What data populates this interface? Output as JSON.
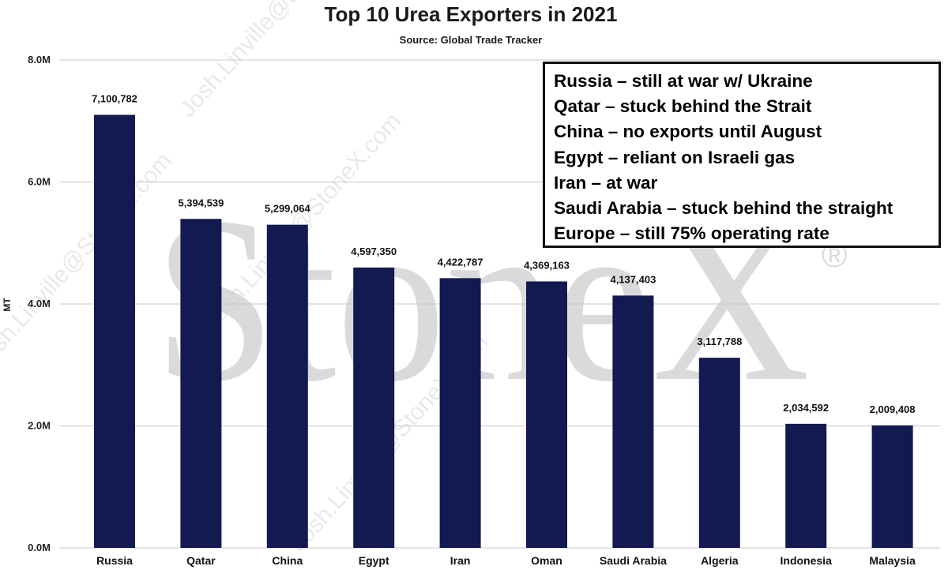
{
  "chart_data": {
    "type": "bar",
    "title": "Top 10 Urea Exporters in 2021",
    "subtitle": "Source: Global Trade Tracker",
    "xlabel": "",
    "ylabel": "MT",
    "ylim": [
      0,
      8000000
    ],
    "yticks": [
      {
        "value": 0,
        "label": "0.0M"
      },
      {
        "value": 2000000,
        "label": "2.0M"
      },
      {
        "value": 4000000,
        "label": "4.0M"
      },
      {
        "value": 6000000,
        "label": "6.0M"
      },
      {
        "value": 8000000,
        "label": "8.0M"
      }
    ],
    "categories": [
      "Russia",
      "Qatar",
      "China",
      "Egypt",
      "Iran",
      "Oman",
      "Saudi Arabia",
      "Algeria",
      "Indonesia",
      "Malaysia"
    ],
    "values": [
      7100782,
      5394539,
      5299064,
      4597350,
      4422787,
      4369163,
      4137403,
      3117788,
      2034592,
      2009408
    ],
    "data_labels": [
      "7,100,782",
      "5,394,539",
      "5,299,064",
      "4,597,350",
      "4,422,787",
      "4,369,163",
      "4,137,403",
      "3,117,788",
      "2,034,592",
      "2,009,408"
    ],
    "bar_color": "#131a52",
    "grid": true,
    "annotations": [
      "Russia – still at war w/ Ukraine",
      "Qatar – stuck behind the Strait",
      "China – no exports until August",
      "Egypt – reliant on Israeli gas",
      "Iran – at war",
      "Saudi Arabia – stuck behind the straight",
      "Europe – still 75% operating rate"
    ]
  },
  "watermark": {
    "brand": "StoneX",
    "registered": "®",
    "diagonal": [
      "Josh.Linville@StoneX.com",
      "Josh.Linville@StoneX.com",
      "Josh.Linville@StoneX.com",
      "Josh.Linville@StoneX.com"
    ]
  }
}
